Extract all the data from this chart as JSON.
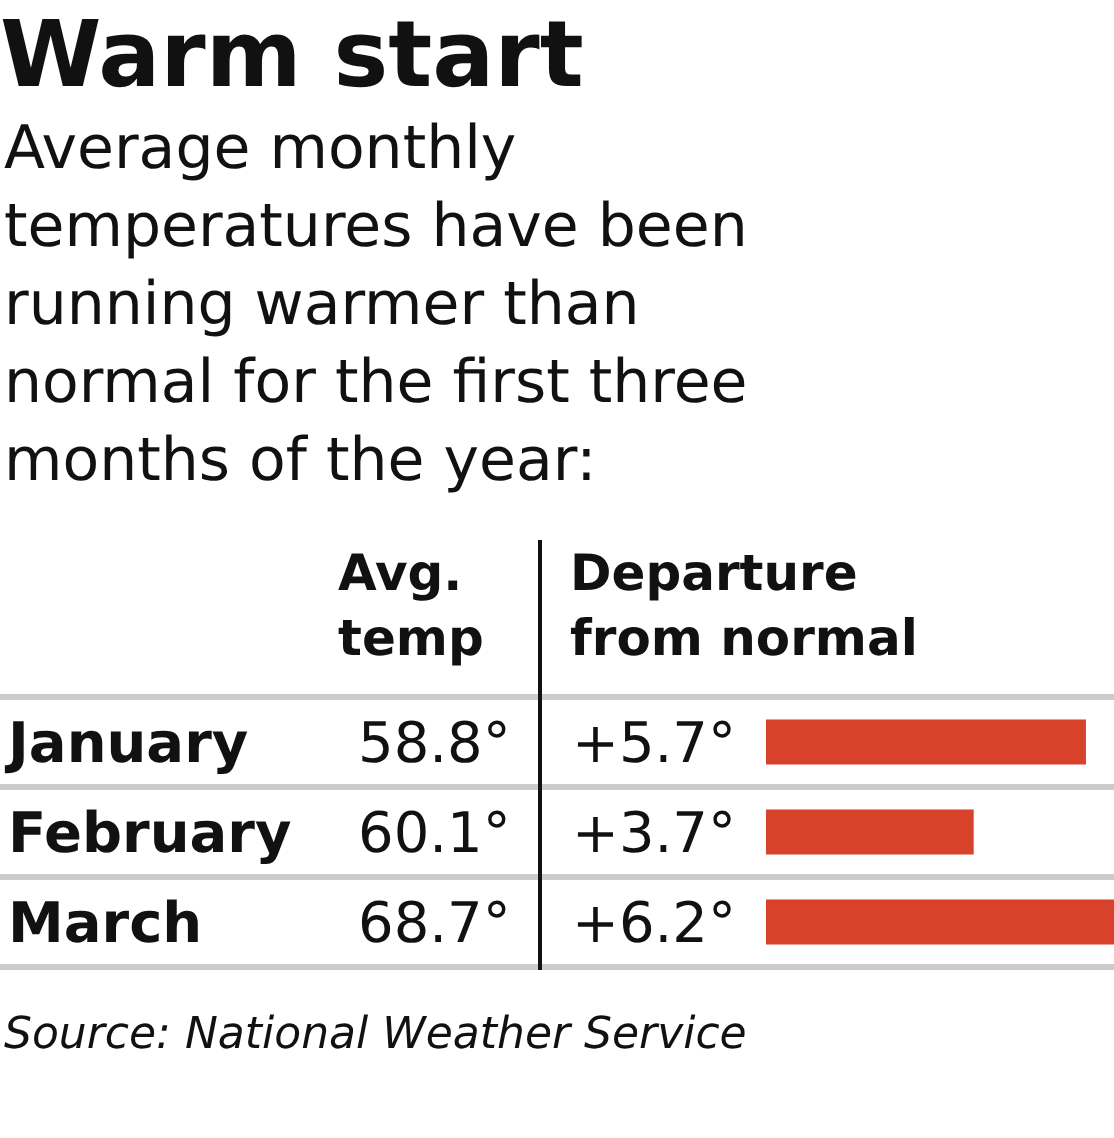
{
  "chart_data": [
    {
      "type": "other",
      "title": "Warm start",
      "subtitle": "Average monthly temperatures have been running warmer than normal for the first three months of the year:",
      "categories": [
        "January",
        "February",
        "March"
      ],
      "series": [
        {
          "name": "Avg. temp",
          "values": [
            58.8,
            60.1,
            68.7
          ],
          "value_labels": [
            "58.8°",
            "60.1°",
            "68.7°"
          ]
        }
      ]
    },
    {
      "type": "bar",
      "orientation": "horizontal",
      "categories": [
        "January",
        "February",
        "March"
      ],
      "series": [
        {
          "name": "Departure from normal",
          "color": "#d8412a",
          "values": [
            5.7,
            3.7,
            6.2
          ],
          "value_labels": [
            "+5.7°",
            "+3.7°",
            "+6.2°"
          ]
        }
      ],
      "xlim": [
        0,
        6.2
      ],
      "tick_labels": false,
      "annotations": [
        "Source: National Weather Service"
      ]
    }
  ]
}
